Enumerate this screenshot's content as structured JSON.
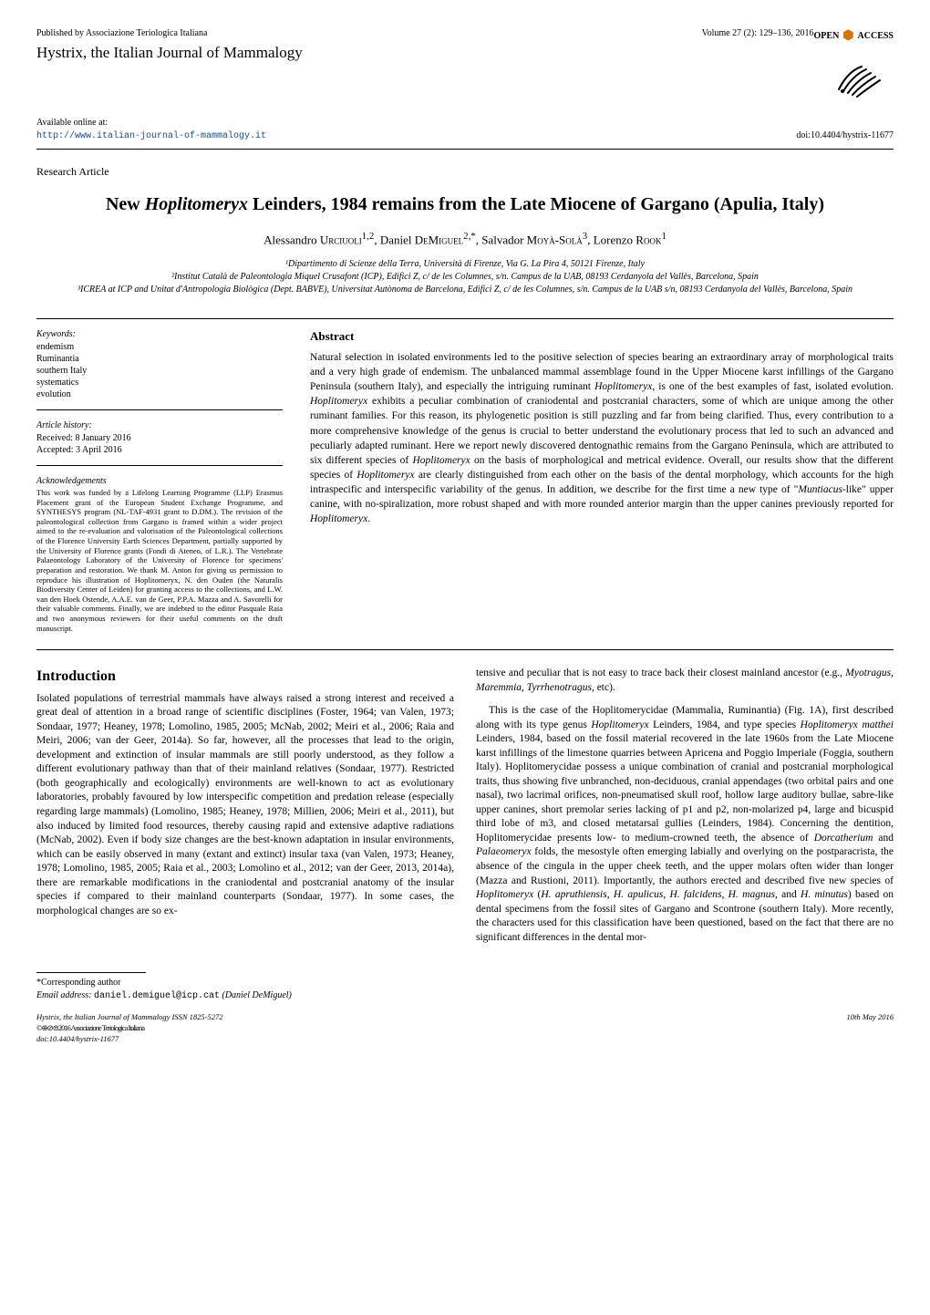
{
  "header": {
    "publisher": "Published by Associazione Teriologica Italiana",
    "journal": "Hystrix, the Italian Journal of Mammalogy",
    "volume": "Volume 27 (2): 129–136, 2016",
    "open_access": "OPEN",
    "access": "ACCESS",
    "open_access_icon": "⬢",
    "available_label": "Available online at:",
    "url": "http://www.italian-journal-of-mammalogy.it",
    "doi": "doi:10.4404/hystrix-11677"
  },
  "article": {
    "type": "Research Article",
    "title_pre": "New ",
    "title_em": "Hoplitomeryx",
    "title_post": " Leinders, 1984 remains from the Late Miocene of Gargano (Apulia, Italy)",
    "authors_html": "Alessandro Urciuoli<sup>1,2</sup>, Daniel DeMiguel<sup>2,*</sup>, Salvador Moyà-Solà<sup>3</sup>, Lorenzo Rook<sup>1</sup>",
    "affiliations": [
      "¹Dipartimento di Scienze della Terra, Università di Firenze, Via G. La Pira 4, 50121 Firenze, Italy",
      "²Institut Català de Paleontologia Miquel Crusafont (ICP), Edifici Z, c/ de les Columnes, s/n. Campus de la UAB, 08193 Cerdanyola del Vallès, Barcelona, Spain",
      "³ICREA at ICP and Unitat d'Antropologia Biològica (Dept. BABVE), Universitat Autònoma de Barcelona, Edifici Z, c/ de les Columnes, s/n. Campus de la UAB s/n, 08193 Cerdanyola del Vallès, Barcelona, Spain"
    ]
  },
  "meta": {
    "keywords_label": "Keywords:",
    "keywords": "endemism\nRuminantia\nsouthern Italy\nsystematics\nevolution",
    "history_label": "Article history:",
    "received": "Received: 8 January 2016",
    "accepted": "Accepted: 3 April 2016",
    "ack_label": "Acknowledgements",
    "ack_text": "This work was funded by a Lifelong Learning Programme (LLP) Erasmus Placement grant of the European Student Exchange Programme, and SYNTHESYS program (NL-TAF-4931 grant to D.DM.). The revision of the paleontological collection from Gargano is framed within a wider project aimed to the re-evaluation and valorisation of the Paleontological collections of the Florence University Earth Sciences Department, partially supported by the University of Florence grants (Fondi di Ateneo, of L.R.). The Vertebrate Palaeontology Laboratory of the University of Florence for specimens' preparation and restoration. We thank M. Anton for giving us permission to reproduce his illustration of Hoplitomeryx, N. den Ouden (the Naturalis Biodiversity Center of Leiden) for granting access to the collections, and L.W. van den Hoek Ostende, A.A.E. van de Geer, P.P.A. Mazza and A. Savorelli for their valuable comments. Finally, we are indebted to the editor Pasquale Raia and two anonymous reviewers for their useful comments on the draft manuscript."
  },
  "abstract": {
    "heading": "Abstract",
    "body": "Natural selection in isolated environments led to the positive selection of species bearing an extraordinary array of morphological traits and a very high grade of endemism. The unbalanced mammal assemblage found in the Upper Miocene karst infillings of the Gargano Peninsula (southern Italy), and especially the intriguing ruminant Hoplitomeryx, is one of the best examples of fast, isolated evolution. Hoplitomeryx exhibits a peculiar combination of craniodental and postcranial characters, some of which are unique among the other ruminant families. For this reason, its phylogenetic position is still puzzling and far from being clarified. Thus, every contribution to a more comprehensive knowledge of the genus is crucial to better understand the evolutionary process that led to such an advanced and peculiarly adapted ruminant. Here we report newly discovered dentognathic remains from the Gargano Peninsula, which are attributed to six different species of Hoplitomeryx on the basis of morphological and metrical evidence. Overall, our results show that the different species of Hoplitomeryx are clearly distinguished from each other on the basis of the dental morphology, which accounts for the high intraspecific and interspecific variability of the genus. In addition, we describe for the first time a new type of \"Muntiacus-like\" upper canine, with no-spiralization, more robust shaped and with more rounded anterior margin than the upper canines previously reported for Hoplitomeryx."
  },
  "body": {
    "intro_heading": "Introduction",
    "para1": "Isolated populations of terrestrial mammals have always raised a strong interest and received a great deal of attention in a broad range of scientific disciplines (Foster, 1964; van Valen, 1973; Sondaar, 1977; Heaney, 1978; Lomolino, 1985, 2005; McNab, 2002; Meiri et al., 2006; Raia and Meiri, 2006; van der Geer, 2014a). So far, however, all the processes that lead to the origin, development and extinction of insular mammals are still poorly understood, as they follow a different evolutionary pathway than that of their mainland relatives (Sondaar, 1977). Restricted (both geographically and ecologically) environments are well-known to act as evolutionary laboratories, probably favoured by low interspecific competition and predation release (especially regarding large mammals) (Lomolino, 1985; Heaney, 1978; Millien, 2006; Meiri et al., 2011), but also induced by limited food resources, thereby causing rapid and extensive adaptive radiations (McNab, 2002). Even if body size changes are the best-known adaptation in insular environments, which can be easily observed in many (extant and extinct) insular taxa (van Valen, 1973; Heaney, 1978; Lomolino, 1985, 2005; Raia et al., 2003; Lomolino et al., 2012; van der Geer, 2013, 2014a), there are remarkable modifications in the craniodental and postcranial anatomy of the insular species if compared to their mainland counterparts (Sondaar, 1977). In some cases, the morphological changes are so ex-",
    "para1b": "tensive and peculiar that is not easy to trace back their closest mainland ancestor (e.g., Myotragus, Maremmia, Tyrrhenotragus, etc).",
    "para2": "This is the case of the Hoplitomerycidae (Mammalia, Ruminantia) (Fig. 1A), first described along with its type genus Hoplitomeryx Leinders, 1984, and type species Hoplitomeryx matthei Leinders, 1984, based on the fossil material recovered in the late 1960s from the Late Miocene karst infillings of the limestone quarries between Apricena and Poggio Imperiale (Foggia, southern Italy). Hoplitomerycidae possess a unique combination of cranial and postcranial morphological traits, thus showing five unbranched, non-deciduous, cranial appendages (two orbital pairs and one nasal), two lacrimal orifices, non-pneumatised skull roof, hollow large auditory bullae, sabre-like upper canines, short premolar series lacking of p1 and p2, non-molarized p4, large and bicuspid third lobe of m3, and closed metatarsal gullies (Leinders, 1984). Concerning the dentition, Hoplitomerycidae presents low- to medium-crowned teeth, the absence of Dorcatherium and Palaeomeryx folds, the mesostyle often emerging labially and overlying on the postparacrista, the absence of the cingula in the upper cheek teeth, and the upper molars often wider than longer (Mazza and Rustioni, 2011). Importantly, the authors erected and described five new species of Hoplitomeryx (H. apruthiensis, H. apulicus, H. falcidens, H. magnus, and H. minutus) based on dental specimens from the fossil sites of Gargano and Scontrone (southern Italy). More recently, the characters used for this classification have been questioned, based on the fact that there are no significant differences in the dental mor-"
  },
  "footer": {
    "corresp": "*Corresponding author",
    "email_label": "Email address:",
    "email": "daniel.demiguel@icp.cat",
    "email_name": "(Daniel DeMiguel)",
    "journal_issn": "Hystrix, the Italian Journal of Mammalogy ISSN 1825-5272",
    "cc": "©⊕⊘⊜2016 Associazione Teriologica Italiana",
    "doi": "doi:10.4404/hystrix-11677",
    "date": "10th May 2016"
  },
  "colors": {
    "text": "#000000",
    "link": "#1a4b8b",
    "oa_icon": "#d97706",
    "background": "#ffffff"
  }
}
